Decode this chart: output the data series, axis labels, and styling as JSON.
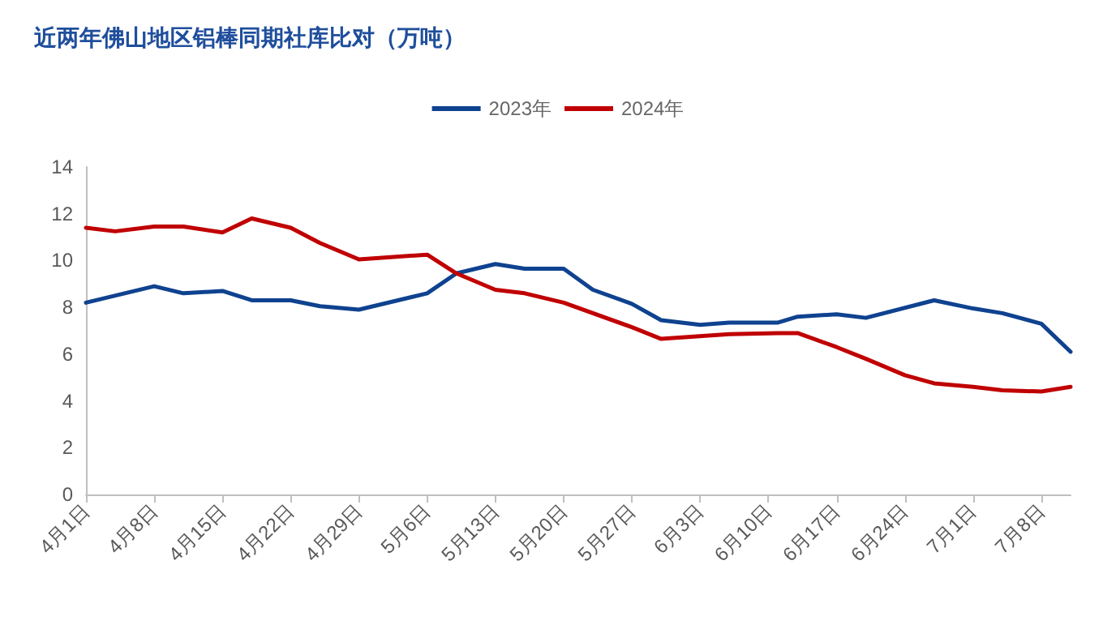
{
  "chart_data": {
    "type": "line",
    "title": "近两年佛山地区铝棒同期社库比对（万吨）",
    "series": [
      {
        "name": "2023年",
        "color": "#0f428f",
        "x": [
          "--04-01",
          "--04-08",
          "--04-11",
          "--04-15",
          "--04-18",
          "--04-22",
          "--04-25",
          "--04-29",
          "--05-06",
          "--05-09",
          "--05-13",
          "--05-16",
          "--05-20",
          "--05-23",
          "--05-27",
          "--05-30",
          "--06-03",
          "--06-06",
          "--06-11",
          "--06-13",
          "--06-17",
          "--06-20",
          "--06-27",
          "--07-01",
          "--07-04",
          "--07-08",
          "--07-11"
        ],
        "values": [
          8.2,
          8.9,
          8.6,
          8.7,
          8.3,
          8.3,
          8.05,
          7.9,
          8.6,
          9.45,
          9.85,
          9.65,
          9.65,
          8.75,
          8.15,
          7.45,
          7.25,
          7.35,
          7.35,
          7.6,
          7.7,
          7.55,
          8.3,
          7.95,
          7.75,
          7.3,
          6.1
        ]
      },
      {
        "name": "2024年",
        "color": "#c00000",
        "x": [
          "--04-01",
          "--04-04",
          "--04-08",
          "--04-11",
          "--04-15",
          "--04-18",
          "--04-22",
          "--04-25",
          "--04-29",
          "--05-06",
          "--05-09",
          "--05-13",
          "--05-16",
          "--05-20",
          "--05-27",
          "--05-30",
          "--06-06",
          "--06-11",
          "--06-13",
          "--06-17",
          "--06-20",
          "--06-24",
          "--06-27",
          "--07-01",
          "--07-04",
          "--07-08",
          "--07-11"
        ],
        "values": [
          11.4,
          11.25,
          11.45,
          11.45,
          11.2,
          11.8,
          11.4,
          10.75,
          10.05,
          10.25,
          9.45,
          8.75,
          8.6,
          8.2,
          7.15,
          6.65,
          6.85,
          6.9,
          6.9,
          6.3,
          5.8,
          5.1,
          4.75,
          4.6,
          4.45,
          4.4,
          4.6
        ]
      }
    ],
    "xlim": [
      "--04-01",
      "--07-11"
    ],
    "xticks": [
      {
        "value": "--04-01",
        "label": "4月1日"
      },
      {
        "value": "--04-08",
        "label": "4月8日"
      },
      {
        "value": "--04-15",
        "label": "4月15日"
      },
      {
        "value": "--04-22",
        "label": "4月22日"
      },
      {
        "value": "--04-29",
        "label": "4月29日"
      },
      {
        "value": "--05-06",
        "label": "5月6日"
      },
      {
        "value": "--05-13",
        "label": "5月13日"
      },
      {
        "value": "--05-20",
        "label": "5月20日"
      },
      {
        "value": "--05-27",
        "label": "5月27日"
      },
      {
        "value": "--06-03",
        "label": "6月3日"
      },
      {
        "value": "--06-10",
        "label": "6月10日"
      },
      {
        "value": "--06-17",
        "label": "6月17日"
      },
      {
        "value": "--06-24",
        "label": "6月24日"
      },
      {
        "value": "--07-01",
        "label": "7月1日"
      },
      {
        "value": "--07-08",
        "label": "7月8日"
      }
    ],
    "ylim": [
      0,
      14
    ],
    "yticks": [
      0,
      2,
      4,
      6,
      8,
      10,
      12,
      14
    ],
    "grid": false,
    "legend": "top",
    "marker": "none",
    "line_style": "solid"
  }
}
